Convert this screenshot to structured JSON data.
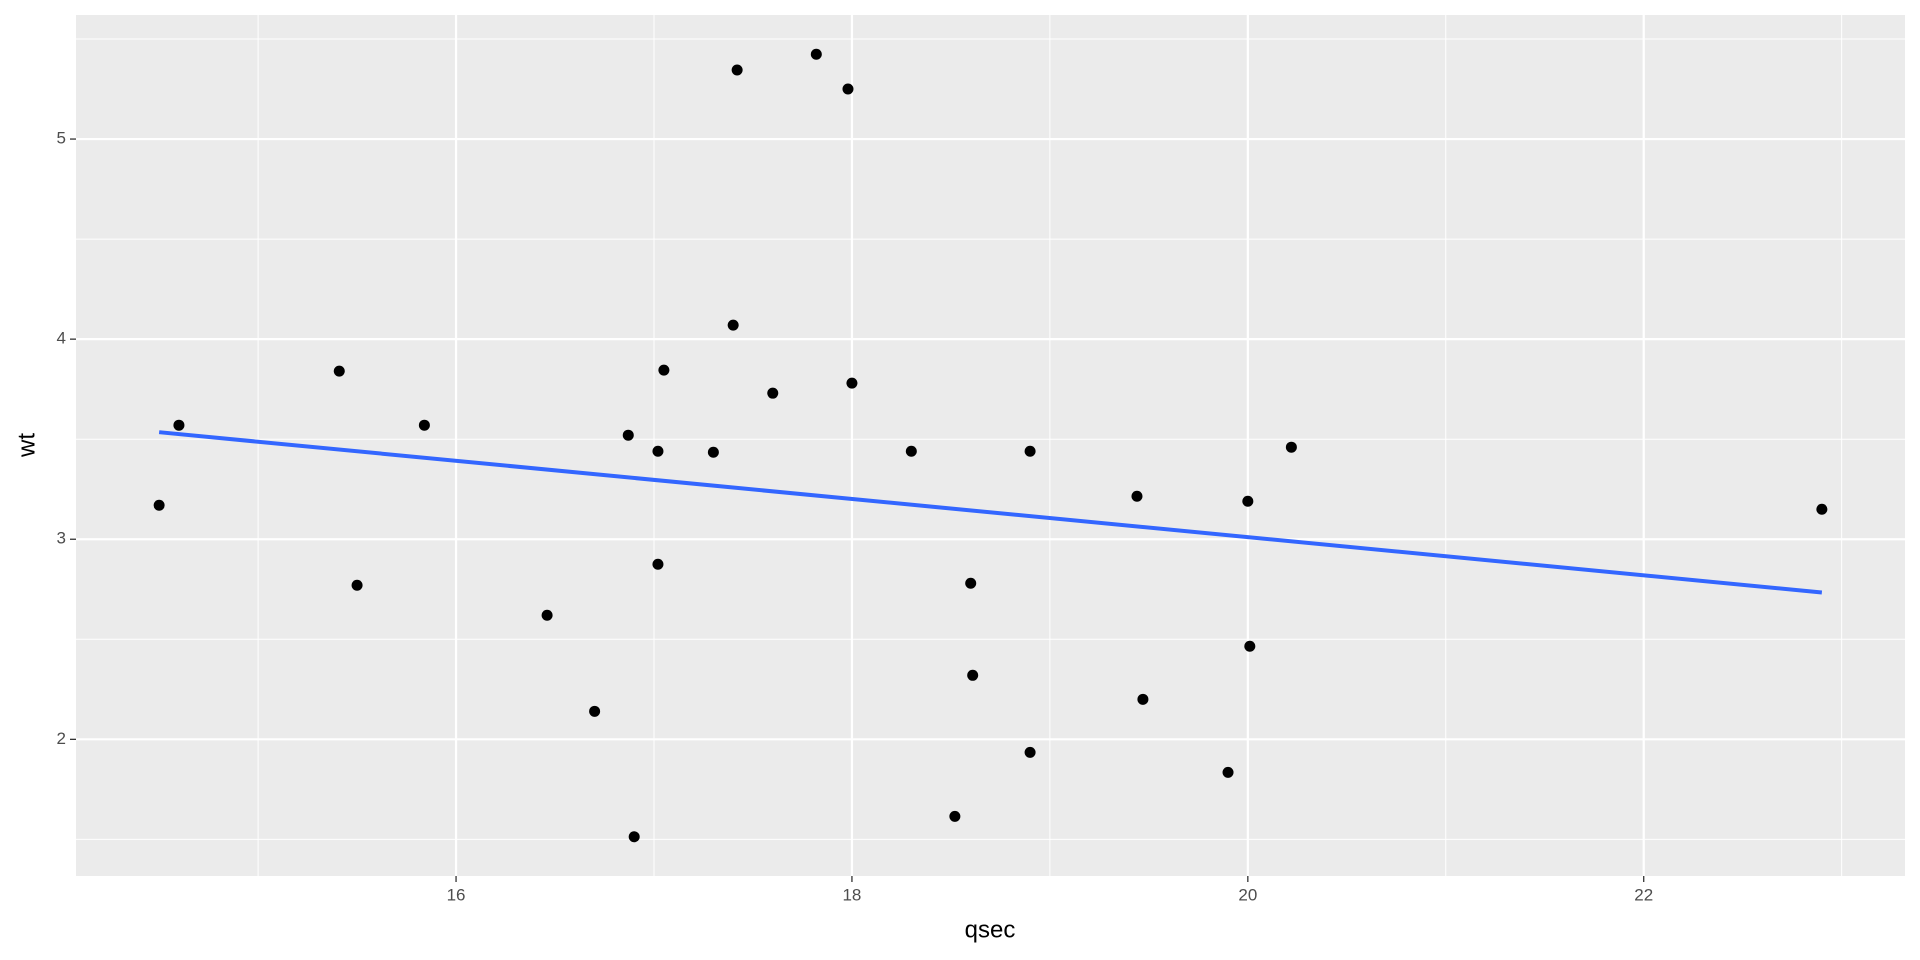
{
  "chart_data": {
    "type": "scatter",
    "x_label": "qsec",
    "y_label": "wt",
    "x": [
      16.46,
      17.02,
      18.61,
      19.44,
      17.02,
      20.22,
      15.84,
      20.0,
      22.9,
      18.3,
      18.9,
      17.4,
      17.6,
      18.0,
      17.98,
      17.82,
      17.42,
      19.47,
      18.52,
      19.9,
      20.01,
      16.87,
      17.3,
      15.41,
      17.05,
      18.9,
      16.7,
      16.9,
      14.5,
      15.5,
      14.6,
      18.6
    ],
    "values": [
      2.62,
      2.875,
      2.32,
      3.215,
      3.44,
      3.46,
      3.57,
      3.19,
      3.15,
      3.44,
      3.44,
      4.07,
      3.73,
      3.78,
      5.25,
      5.424,
      5.345,
      2.2,
      1.615,
      1.835,
      2.465,
      3.52,
      3.435,
      3.84,
      3.845,
      1.935,
      2.14,
      1.513,
      3.17,
      2.77,
      3.57,
      2.78
    ],
    "color": "#000000",
    "fit": {
      "x": [
        14.5,
        22.9
      ],
      "values": [
        3.535,
        2.734
      ],
      "color": "#3366FF"
    },
    "xlim": [
      14.08,
      23.32
    ],
    "ylim": [
      1.317,
      5.62
    ],
    "xticks": [
      16,
      18,
      20,
      22
    ],
    "yticks": [
      2,
      3,
      4,
      5
    ],
    "x_minor_ticks": [
      15,
      17,
      19,
      21,
      23
    ],
    "y_minor_ticks": [
      1.5,
      2.5,
      3.5,
      4.5,
      5.5
    ],
    "grid": true
  }
}
